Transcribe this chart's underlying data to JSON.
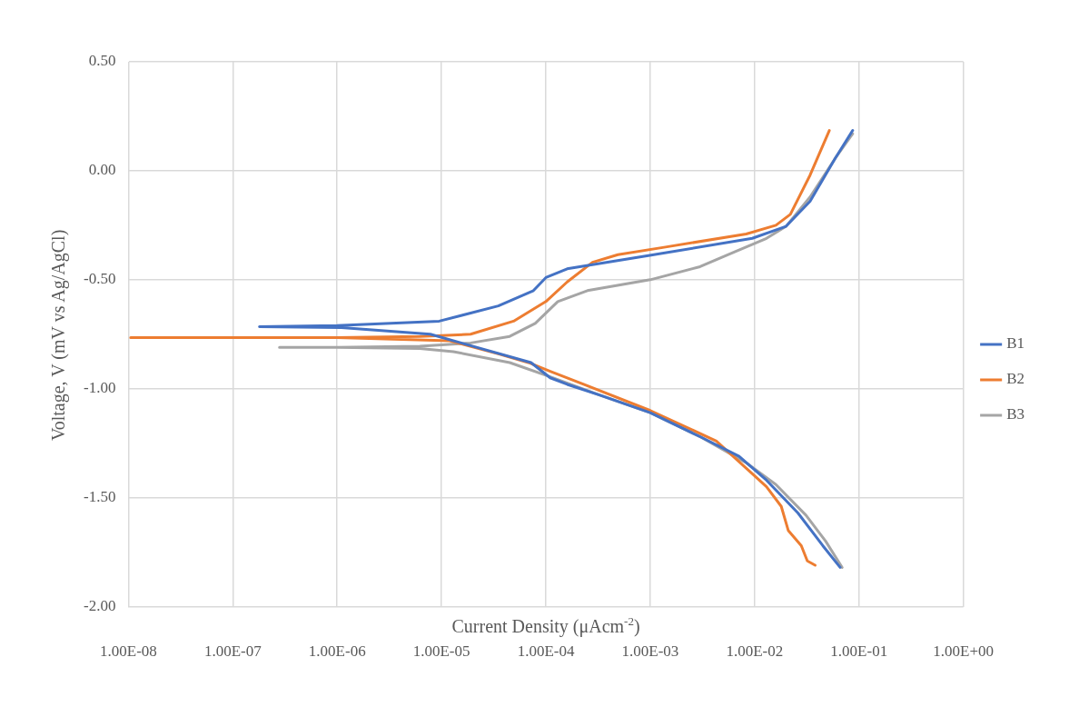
{
  "chart_data": {
    "type": "line",
    "xlabel": "Current Density (μAcm$^{-2}$)",
    "ylabel": "Voltage, V (mV vs Ag/AgCl)",
    "log": "x",
    "grid": true,
    "legend": "right",
    "xlim": [
      1e-08,
      1
    ],
    "xticks": [
      {
        "value": 1e-08,
        "label": "1.00E-08"
      },
      {
        "value": 1e-07,
        "label": "1.00E-07"
      },
      {
        "value": 1e-06,
        "label": "1.00E-06"
      },
      {
        "value": 1e-05,
        "label": "1.00E-05"
      },
      {
        "value": 0.0001,
        "label": "1.00E-04"
      },
      {
        "value": 0.001,
        "label": "1.00E-03"
      },
      {
        "value": 0.01,
        "label": "1.00E-02"
      },
      {
        "value": 0.1,
        "label": "1.00E-01"
      },
      {
        "value": 1,
        "label": "1.00E+00"
      }
    ],
    "ylim": [
      -2,
      0.5
    ],
    "yticks": [
      {
        "value": -2,
        "label": "-2.00"
      },
      {
        "value": -1.5,
        "label": "-1.50"
      },
      {
        "value": -1,
        "label": "-1.00"
      },
      {
        "value": -0.5,
        "label": "-0.50"
      },
      {
        "value": 0,
        "label": "0.00"
      },
      {
        "value": 0.5,
        "label": "0.50"
      }
    ],
    "series": [
      {
        "name": "B1",
        "color": "#4472c4",
        "x": [
          0.066,
          0.045,
          0.026,
          0.013,
          0.0071,
          0.003,
          0.001,
          0.00033,
          0.00016,
          0.00011,
          7.2e-05,
          7.8e-06,
          1.1e-06,
          1.8e-07,
          1e-06,
          9.5e-06,
          3.5e-05,
          7.6e-05,
          0.0001,
          0.00016,
          0.00093,
          0.0095,
          0.02,
          0.034,
          0.059,
          0.087
        ],
        "values": [
          -1.82,
          -1.72,
          -1.57,
          -1.42,
          -1.31,
          -1.22,
          -1.11,
          -1.03,
          -0.98,
          -0.95,
          -0.88,
          -0.75,
          -0.72,
          -0.715,
          -0.71,
          -0.69,
          -0.62,
          -0.55,
          -0.49,
          -0.45,
          -0.39,
          -0.31,
          -0.255,
          -0.14,
          0.056,
          0.185
        ]
      },
      {
        "name": "B2",
        "color": "#ed7d31",
        "x": [
          0.038,
          0.032,
          0.028,
          0.021,
          0.018,
          0.013,
          0.01,
          0.0043,
          0.001,
          0.00023,
          0.00011,
          6.8e-05,
          3.5e-05,
          1.2e-05,
          1e-06,
          1.05e-08,
          1e-06,
          6.2e-06,
          1.9e-05,
          4.9e-05,
          0.0001,
          0.00016,
          0.00028,
          0.00049,
          0.0014,
          0.0083,
          0.016,
          0.022,
          0.034,
          0.052
        ],
        "values": [
          -1.81,
          -1.79,
          -1.72,
          -1.65,
          -1.54,
          -1.45,
          -1.4,
          -1.24,
          -1.1,
          -0.98,
          -0.92,
          -0.88,
          -0.84,
          -0.78,
          -0.765,
          -0.765,
          -0.765,
          -0.76,
          -0.75,
          -0.69,
          -0.6,
          -0.51,
          -0.42,
          -0.385,
          -0.35,
          -0.29,
          -0.25,
          -0.2,
          -0.02,
          0.185
        ]
      },
      {
        "name": "B3",
        "color": "#a5a5a5",
        "x": [
          0.069,
          0.048,
          0.031,
          0.016,
          0.0083,
          0.003,
          0.001,
          0.00033,
          0.00011,
          4.5e-05,
          1.3e-05,
          6.2e-06,
          1e-06,
          2.8e-07,
          1e-06,
          6.2e-06,
          1.9e-05,
          4.5e-05,
          7.9e-05,
          0.00013,
          0.00025,
          0.001,
          0.003,
          0.0066,
          0.013,
          0.02,
          0.034,
          0.059,
          0.087
        ],
        "values": [
          -1.82,
          -1.7,
          -1.58,
          -1.44,
          -1.34,
          -1.22,
          -1.11,
          -1.03,
          -0.945,
          -0.88,
          -0.83,
          -0.815,
          -0.81,
          -0.81,
          -0.81,
          -0.805,
          -0.79,
          -0.76,
          -0.7,
          -0.6,
          -0.55,
          -0.5,
          -0.44,
          -0.37,
          -0.31,
          -0.255,
          -0.12,
          0.056,
          0.17
        ]
      }
    ]
  }
}
